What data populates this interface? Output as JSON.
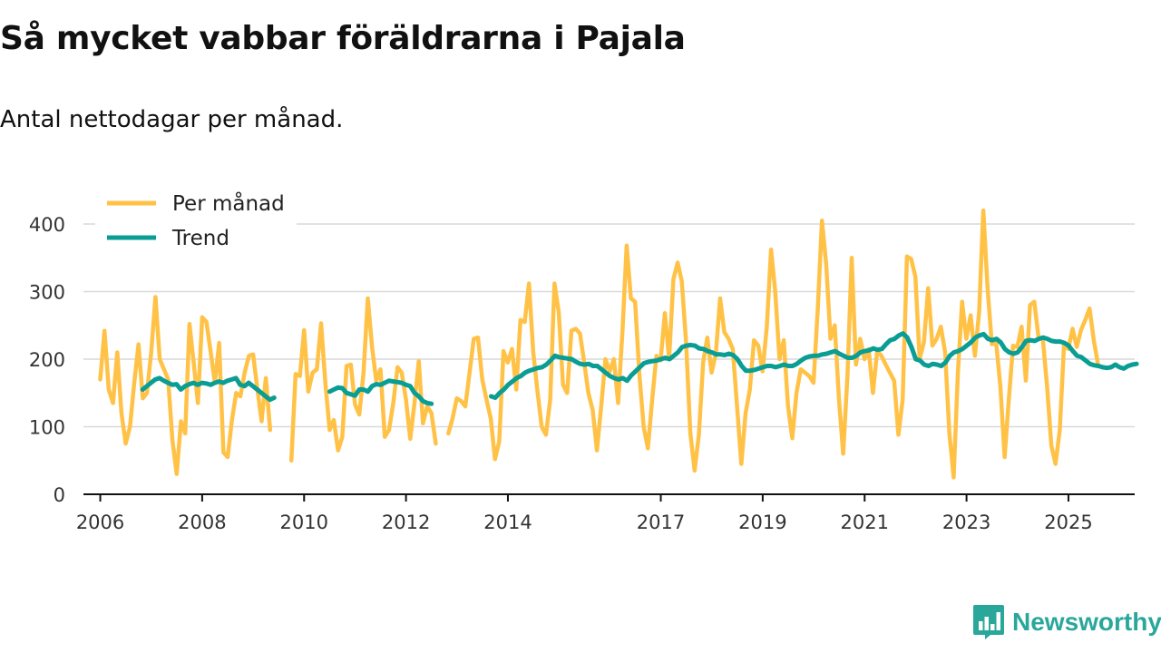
{
  "title": "Så mycket vabbar föräldrarna i Pajala",
  "subtitle": "Antal nettodagar per månad.",
  "brand": "Newsworthy",
  "colors": {
    "monthly": "#ffc247",
    "trend": "#0a9d94",
    "grid": "#d9d9d9",
    "axis": "#111111",
    "brand": "#2aa79b"
  },
  "chart_data": {
    "type": "line",
    "title": "Så mycket vabbar föräldrarna i Pajala",
    "subtitle": "Antal nettodagar per månad.",
    "xlabel": "",
    "ylabel": "",
    "ylim": [
      0,
      400
    ],
    "xlim": [
      2005.67,
      2026.3
    ],
    "yticks": [
      0,
      100,
      200,
      300,
      400
    ],
    "xticks": [
      2006,
      2008,
      2010,
      2012,
      2014,
      2017,
      2019,
      2021,
      2023,
      2025
    ],
    "xtick_labels": [
      "2006",
      "2008",
      "2010",
      "2012",
      "2014",
      "2017",
      "2019",
      "2021",
      "2023",
      "2025"
    ],
    "grid": true,
    "legend_position": "top-left",
    "series": [
      {
        "name": "Per månad",
        "color": "#ffc247",
        "segments": [
          {
            "start": 2006.0,
            "values": [
              170,
              242,
              155,
              135,
              210,
              120,
              75,
              100,
              165,
              222,
              142,
              150,
              210,
              292,
              200,
              185,
              170,
              80,
              30,
              108,
              90,
              252,
              195,
              135,
              262,
              255,
              210,
              165,
              224,
              62,
              55,
              110,
              150,
              145,
              180,
              205,
              207,
              155,
              108,
              172,
              95
            ]
          },
          {
            "start": 2009.75,
            "values": [
              50,
              178,
              175,
              243,
              152,
              180,
              185,
              253,
              165,
              95,
              110,
              65,
              85,
              190,
              192,
              133,
              118,
              180,
              290,
              218,
              168,
              185,
              85,
              95,
              135,
              188,
              180,
              140,
              82,
              135,
              197,
              105,
              130,
              120,
              75
            ]
          },
          {
            "start": 2012.83,
            "values": [
              90,
              112,
              142,
              138,
              130,
              180,
              230,
              232,
              170,
              140,
              112,
              52,
              78,
              212,
              195,
              215,
              155,
              258,
              255,
              312,
              210,
              152,
              100,
              88,
              140,
              312,
              270,
              162,
              150,
              242,
              245,
              238,
              195,
              150,
              125,
              65,
              130,
              200,
              182,
              200,
              135,
              240,
              368,
              290,
              285,
              178,
              100,
              68,
              140,
              205,
              198,
              268,
              200,
              318,
              343,
              315,
              225,
              90,
              35,
              88,
              195,
              232,
              180,
              208,
              290,
              240,
              230,
              215,
              130,
              45,
              120,
              155,
              228,
              220,
              182,
              248,
              362,
              300,
              200,
              228,
              130,
              83,
              150,
              185,
              180,
              175,
              165,
              275,
              405,
              340,
              230,
              250,
              140,
              60,
              175,
              350,
              192,
              230,
              200,
              215,
              150,
              212,
              205,
              192,
              180,
              168,
              88,
              140,
              352,
              348,
              322,
              200,
              225,
              305,
              220,
              230,
              248,
              210,
              90,
              25,
              180,
              285,
              230,
              265,
              205,
              270,
              420,
              305,
              222,
              225,
              160,
              55,
              140,
              220,
              218,
              248,
              168,
              280,
              285,
              232,
              230,
              160,
              72,
              45,
              95,
              222,
              215,
              245,
              218,
              243,
              258,
              275,
              228,
              192
            ]
          }
        ]
      },
      {
        "name": "Trend",
        "color": "#0a9d94",
        "segments": [
          {
            "start": 2006.83,
            "values": [
              155,
              160,
              165,
              170,
              172,
              168,
              165,
              162,
              163,
              155,
              160,
              163,
              165,
              162,
              165,
              164,
              162,
              165,
              167,
              165,
              168,
              170,
              172,
              162,
              160,
              165,
              160,
              155,
              150,
              145,
              140,
              143
            ]
          },
          {
            "start": 2010.5,
            "values": [
              152,
              155,
              158,
              157,
              150,
              148,
              146,
              155,
              155,
              152,
              160,
              163,
              162,
              165,
              168,
              167,
              166,
              165,
              162,
              160,
              150,
              145,
              138,
              135,
              134
            ]
          },
          {
            "start": 2013.67,
            "values": [
              145,
              143,
              150,
              155,
              162,
              167,
              172,
              175,
              180,
              183,
              185,
              187,
              188,
              192,
              198,
              205,
              203,
              202,
              201,
              200,
              196,
              193,
              192,
              193,
              190,
              190,
              185,
              180,
              175,
              172,
              170,
              172,
              168,
              176,
              182,
              188,
              194,
              196,
              197,
              198,
              200,
              202,
              200,
              205,
              210,
              218,
              220,
              221,
              220,
              216,
              215,
              212,
              210,
              207,
              207,
              206,
              208,
              206,
              200,
              190,
              183,
              183,
              184,
              186,
              188,
              190,
              190,
              188,
              190,
              192,
              190,
              190,
              193,
              198,
              202,
              204,
              205,
              205,
              207,
              208,
              210,
              212,
              208,
              205,
              202,
              202,
              205,
              210,
              212,
              213,
              216,
              214,
              215,
              222,
              228,
              230,
              235,
              238,
              232,
              218,
              200,
              198,
              192,
              190,
              193,
              192,
              190,
              195,
              205,
              210,
              212,
              215,
              220,
              225,
              232,
              235,
              237,
              230,
              228,
              230,
              225,
              215,
              210,
              208,
              210,
              218,
              227,
              228,
              227,
              230,
              232,
              230,
              227,
              226,
              226,
              224,
              220,
              212,
              205,
              203,
              198,
              193,
              191,
              190,
              188,
              187,
              188,
              192,
              188,
              186,
              190,
              192,
              193
            ]
          }
        ]
      }
    ]
  }
}
